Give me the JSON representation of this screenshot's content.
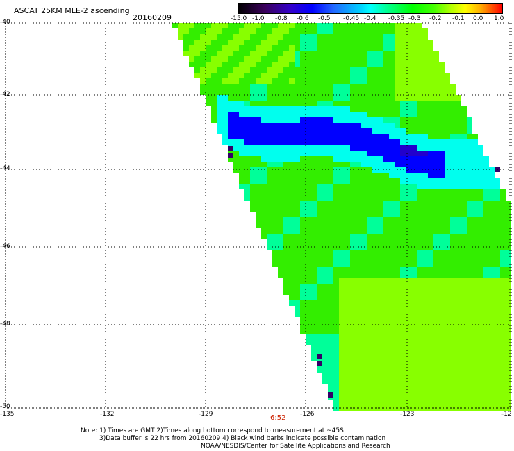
{
  "header": {
    "title": "ASCAT 25KM MLE-2 ascending",
    "date": "20160209"
  },
  "colorbar": {
    "labels": [
      "-15.0",
      "-1.0",
      "-0.8",
      "-0.6",
      "-0.5",
      "-0.45",
      "-0.4",
      "-0.35",
      "-0.3",
      "-0.2",
      "-0.1",
      "0.0",
      "1.0"
    ],
    "colors": [
      "#000000",
      "#3a005a",
      "#3300cc",
      "#0000ff",
      "#2266ff",
      "#00ccff",
      "#00ffff",
      "#00ff99",
      "#00ff00",
      "#44ff00",
      "#aaff00",
      "#ffff00",
      "#ffaa00",
      "#ff0000"
    ]
  },
  "map": {
    "lon_labels": [
      "-135",
      "-132",
      "-129",
      "-126",
      "-123",
      "-12"
    ],
    "lat_labels": [
      "-40",
      "-42",
      "-44",
      "-46",
      "-48",
      "-50"
    ],
    "colors": {
      "green": "#33ee00",
      "lime": "#88ff00",
      "cyan": "#00ffee",
      "teal": "#00ff99",
      "blue": "#0000ff",
      "darkblue": "#2200cc",
      "purple": "#330066"
    }
  },
  "time_marker": "6:52",
  "notes": {
    "line1": "Note: 1) Times are GMT 2)Times along bottom correspond to measurement at ~45S",
    "line2": "3)Data buffer is 22 hrs from 20160209 4) Black wind barbs indicate possible contamination",
    "line3": "NOAA/NESDIS/Center for Satellite Applications and Research"
  }
}
